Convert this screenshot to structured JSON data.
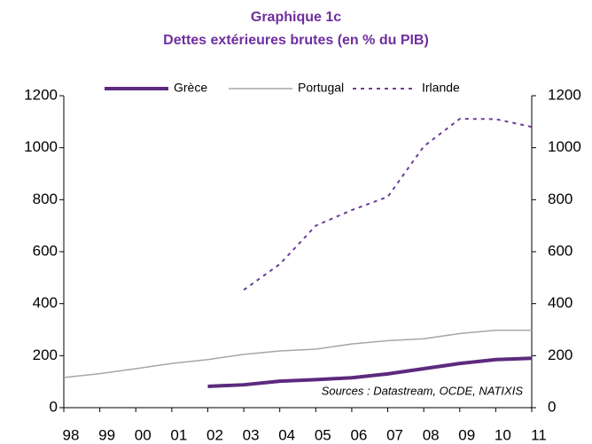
{
  "chart_data": {
    "type": "line",
    "title": "Graphique 1c",
    "subtitle": "Dettes extérieures brutes (en % du PIB)",
    "annotation": "Sources : Datastream, OCDE, NATIXIS",
    "categories": [
      "98",
      "99",
      "00",
      "01",
      "02",
      "03",
      "04",
      "05",
      "06",
      "07",
      "08",
      "09",
      "10",
      "11"
    ],
    "series": [
      {
        "name": "Grèce",
        "color": "#5c2a7e",
        "style": "solid-thick",
        "values": [
          null,
          null,
          null,
          null,
          82,
          88,
          102,
          108,
          115,
          130,
          150,
          170,
          185,
          190
        ]
      },
      {
        "name": "Portugal",
        "color": "#a6a6a6",
        "style": "solid",
        "values": [
          116,
          131,
          150,
          170,
          185,
          205,
          218,
          225,
          245,
          258,
          265,
          285,
          298,
          298
        ]
      },
      {
        "name": "Irlande",
        "color": "#6a3d9a",
        "style": "dotted",
        "values": [
          null,
          null,
          null,
          null,
          null,
          453,
          552,
          700,
          760,
          811,
          1005,
          1111,
          1110,
          1080
        ]
      }
    ],
    "ylim": [
      0,
      1200
    ],
    "yticks": [
      0,
      200,
      400,
      600,
      800,
      1000,
      1200
    ],
    "y2lim": [
      0,
      1200
    ],
    "y2ticks": [
      0,
      200,
      400,
      600,
      800,
      1000,
      1200
    ],
    "legend": "top"
  }
}
